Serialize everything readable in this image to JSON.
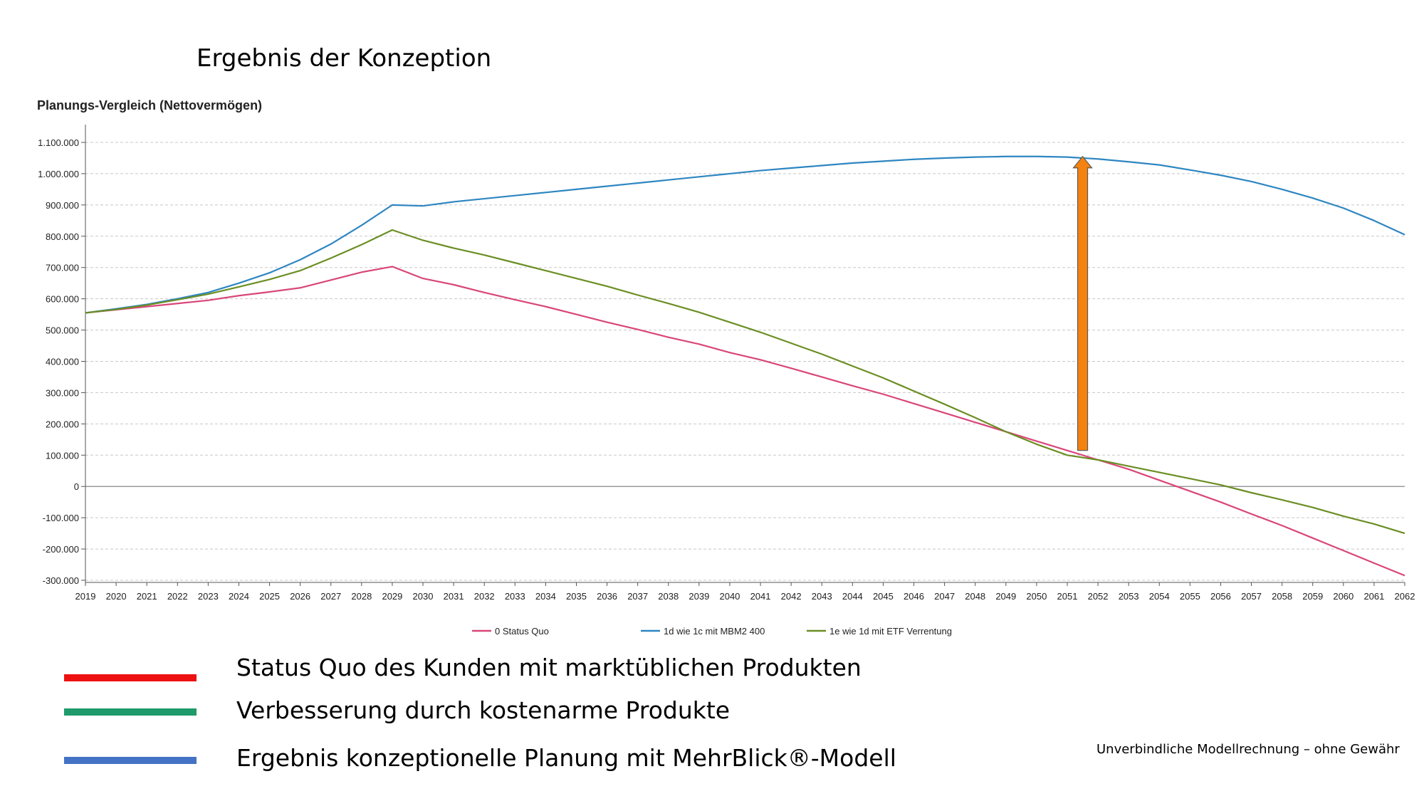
{
  "slide": {
    "title": "Ergebnis der Konzeption",
    "disclaimer": "Unverbindliche Modellrechnung – ohne Gewähr"
  },
  "legend_explanations": [
    {
      "label": "Status Quo des Kunden mit marktüblichen Produkten",
      "color": "#ee1111"
    },
    {
      "label": "Verbesserung durch kostenarme Produkte",
      "color": "#1f9a6a"
    },
    {
      "label": "Ergebnis konzeptionelle Planung mit MehrBlick®-Modell",
      "color": "#4472c4"
    }
  ],
  "chart_data": {
    "type": "line",
    "title": "Planungs-Vergleich (Nettovermögen)",
    "xlabel": "",
    "ylabel": "",
    "ylim": [
      -300000,
      1100000
    ],
    "y_ticks": [
      1100000,
      1000000,
      900000,
      800000,
      700000,
      600000,
      500000,
      400000,
      300000,
      200000,
      100000,
      0,
      -100000,
      -200000,
      -300000
    ],
    "y_tick_labels": [
      "1.100.000",
      "1.000.000",
      "900.000",
      "800.000",
      "700.000",
      "600.000",
      "500.000",
      "400.000",
      "300.000",
      "200.000",
      "100.000",
      "0",
      "-100.000",
      "-200.000",
      "-300.000"
    ],
    "x": [
      2019,
      2020,
      2021,
      2022,
      2023,
      2024,
      2025,
      2026,
      2027,
      2028,
      2029,
      2030,
      2031,
      2032,
      2033,
      2034,
      2035,
      2036,
      2037,
      2038,
      2039,
      2040,
      2041,
      2042,
      2043,
      2044,
      2045,
      2046,
      2047,
      2048,
      2049,
      2050,
      2051,
      2052,
      2053,
      2054,
      2055,
      2056,
      2057,
      2058,
      2059,
      2060,
      2061,
      2062
    ],
    "x_tick_labels": [
      "2019",
      "2020",
      "2021",
      "2022",
      "2023",
      "2024",
      "2025",
      "2026",
      "2027",
      "2028",
      "2029",
      "2030",
      "2031",
      "2032",
      "2033",
      "2034",
      "2035",
      "2036",
      "2037",
      "2038",
      "2039",
      "2040",
      "2041",
      "2042",
      "2043",
      "2044",
      "2045",
      "2046",
      "2047",
      "2048",
      "2049",
      "2050",
      "2051",
      "2052",
      "2053",
      "2054",
      "2055",
      "2056",
      "2057",
      "2058",
      "2059",
      "2060",
      "2061",
      "2062"
    ],
    "grid": true,
    "series": [
      {
        "name": "0 Status Quo",
        "color": "#d9467a",
        "values": [
          555000,
          565000,
          575000,
          585000,
          595000,
          610000,
          622000,
          635000,
          660000,
          685000,
          703000,
          665000,
          645000,
          620000,
          597000,
          575000,
          550000,
          525000,
          502000,
          477000,
          455000,
          428000,
          405000,
          378000,
          350000,
          322000,
          295000,
          265000,
          235000,
          205000,
          175000,
          145000,
          115000,
          85000,
          55000,
          20000,
          -15000,
          -50000,
          -88000,
          -125000,
          -165000,
          -205000,
          -245000,
          -285000
        ]
      },
      {
        "name": "1d wie 1c mit MBM2 400",
        "color": "#2e86c1",
        "values": [
          555000,
          568000,
          582000,
          600000,
          620000,
          650000,
          683000,
          725000,
          775000,
          835000,
          900000,
          897000,
          910000,
          920000,
          930000,
          940000,
          950000,
          960000,
          970000,
          980000,
          990000,
          1000000,
          1010000,
          1018000,
          1026000,
          1034000,
          1040000,
          1046000,
          1050000,
          1053000,
          1055000,
          1055000,
          1053000,
          1047000,
          1038000,
          1028000,
          1012000,
          995000,
          975000,
          950000,
          922000,
          890000,
          850000,
          805000
        ]
      },
      {
        "name": "1e wie 1d mit ETF Verrentung",
        "color": "#6b8e23",
        "values": [
          555000,
          566000,
          580000,
          597000,
          615000,
          638000,
          662000,
          690000,
          730000,
          773000,
          820000,
          787000,
          762000,
          740000,
          715000,
          690000,
          665000,
          640000,
          612000,
          585000,
          557000,
          525000,
          493000,
          458000,
          423000,
          385000,
          347000,
          305000,
          263000,
          220000,
          175000,
          135000,
          100000,
          85000,
          65000,
          45000,
          25000,
          5000,
          -20000,
          -43000,
          -67000,
          -95000,
          -120000,
          -150000
        ]
      }
    ],
    "annotations": [
      {
        "type": "arrow",
        "x": 2051.5,
        "y_from": 115000,
        "y_to": 1055000,
        "color": "#f5820f"
      }
    ]
  }
}
